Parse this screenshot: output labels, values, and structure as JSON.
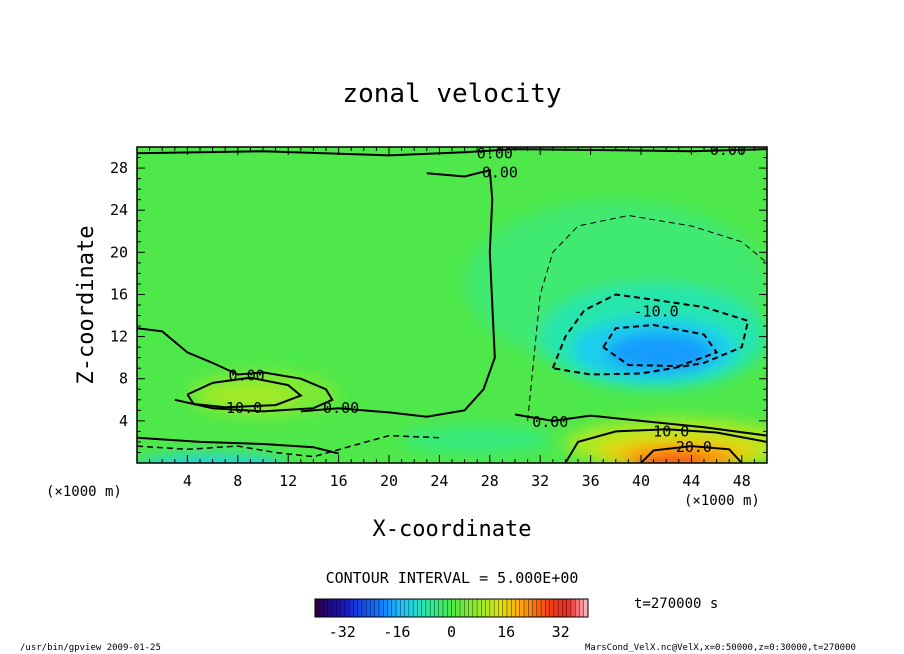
{
  "chart_data": {
    "type": "heatmap",
    "title": "zonal velocity",
    "xlabel": "X-coordinate",
    "ylabel": "Z-coordinate",
    "x_unit": "(×1000 m)",
    "y_unit": "(×1000 m)",
    "xlim": [
      0,
      50
    ],
    "ylim": [
      0,
      30
    ],
    "x_ticks": [
      4,
      8,
      12,
      16,
      20,
      24,
      28,
      32,
      36,
      40,
      44,
      48
    ],
    "y_ticks": [
      4,
      8,
      12,
      16,
      20,
      24,
      28
    ],
    "contour_interval_text": "CONTOUR INTERVAL = 5.000E+00",
    "time_text": "t=270000 s",
    "colorbar": {
      "min": -40,
      "max": 40,
      "ticks": [
        -32,
        -16,
        0,
        16,
        32
      ]
    },
    "features": [
      {
        "name": "jet-near-surface",
        "x": 43,
        "z": 0.8,
        "peak": 27
      },
      {
        "name": "counterflow-core",
        "x": 41,
        "z": 10.5,
        "peak": -19
      },
      {
        "name": "low-level-positive-lobe",
        "x": 9,
        "z": 6.5,
        "peak": 11
      },
      {
        "name": "surface-negative-west",
        "x": 6,
        "z": 0.3,
        "peak": -14
      }
    ],
    "contour_labels": [
      {
        "text": "0.00",
        "x": 28.4,
        "z": 29.4
      },
      {
        "text": "0.00",
        "x": 28.8,
        "z": 27.6
      },
      {
        "text": "0.00",
        "x": 46.9,
        "z": 29.7
      },
      {
        "text": "-10.0",
        "x": 41.2,
        "z": 14.4
      },
      {
        "text": "0.00",
        "x": 8.7,
        "z": 8.3
      },
      {
        "text": "10.0",
        "x": 8.5,
        "z": 5.2
      },
      {
        "text": "0.00",
        "x": 16.2,
        "z": 5.2
      },
      {
        "text": "0.00",
        "x": 32.8,
        "z": 3.9
      },
      {
        "text": "10.0",
        "x": 42.4,
        "z": 3.0
      },
      {
        "text": "20.0",
        "x": 44.2,
        "z": 1.5
      }
    ]
  },
  "footer": {
    "program": "/usr/bin/gpview   2009-01-25",
    "source": "MarsCond_VelX.nc@VelX,x=0:50000,z=0:30000,t=270000"
  }
}
